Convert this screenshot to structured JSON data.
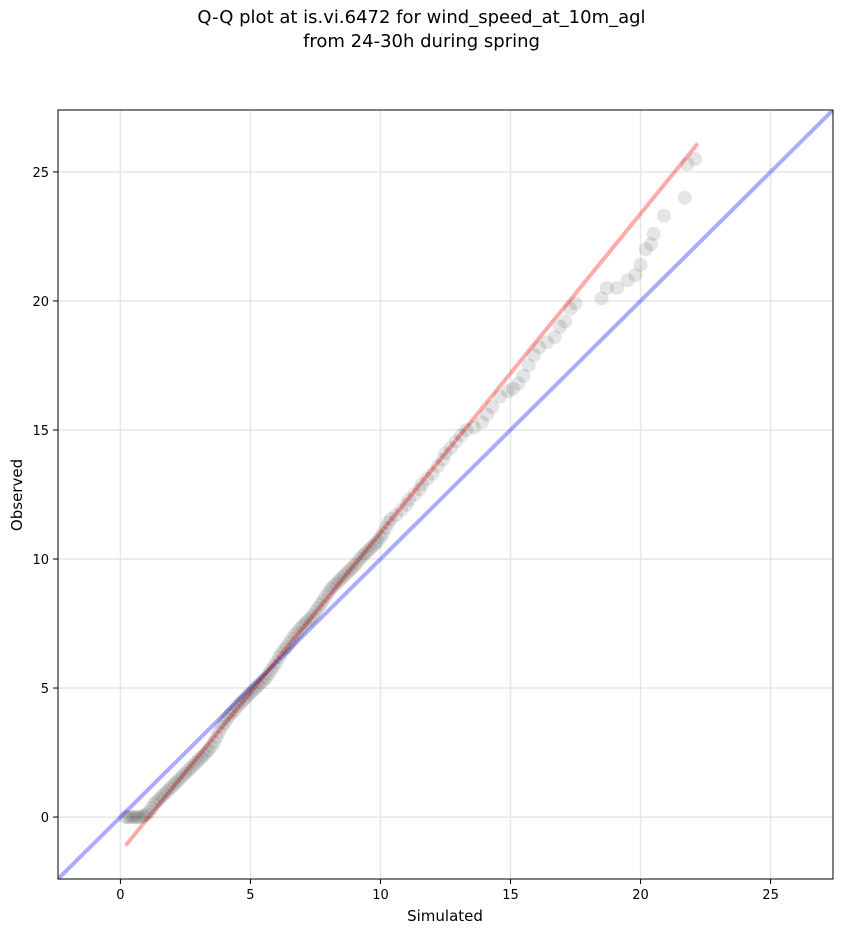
{
  "chart_data": {
    "type": "scatter",
    "title_line1": "Q-Q plot at is.vi.6472 for wind_speed_at_10m_agl",
    "title_line2": "from 24-30h during spring",
    "xlabel": "Simulated",
    "ylabel": "Observed",
    "xlim": [
      -2.4,
      27.4
    ],
    "ylim": [
      -2.4,
      27.4
    ],
    "xticks": [
      0,
      5,
      10,
      15,
      20,
      25
    ],
    "yticks": [
      0,
      5,
      10,
      15,
      20,
      25
    ],
    "grid": true,
    "identity_line": {
      "color": "#0000ff",
      "from": [
        -2.4,
        -2.4
      ],
      "to": [
        27.4,
        27.4
      ]
    },
    "fit_line": {
      "color": "#ff0000",
      "from": [
        0.2,
        -1.1
      ],
      "to": [
        22.2,
        26.1
      ]
    },
    "points": [
      [
        0.2,
        0.0
      ],
      [
        0.3,
        0.0
      ],
      [
        0.4,
        0.0
      ],
      [
        0.5,
        0.0
      ],
      [
        0.6,
        0.0
      ],
      [
        0.7,
        0.0
      ],
      [
        0.8,
        0.0
      ],
      [
        0.9,
        0.05
      ],
      [
        1.0,
        0.1
      ],
      [
        1.1,
        0.2
      ],
      [
        1.2,
        0.35
      ],
      [
        1.3,
        0.5
      ],
      [
        1.4,
        0.6
      ],
      [
        1.5,
        0.7
      ],
      [
        1.6,
        0.8
      ],
      [
        1.7,
        0.9
      ],
      [
        1.8,
        1.0
      ],
      [
        1.9,
        1.1
      ],
      [
        2.0,
        1.2
      ],
      [
        2.1,
        1.3
      ],
      [
        2.2,
        1.4
      ],
      [
        2.3,
        1.5
      ],
      [
        2.4,
        1.6
      ],
      [
        2.5,
        1.7
      ],
      [
        2.6,
        1.8
      ],
      [
        2.7,
        1.9
      ],
      [
        2.8,
        2.0
      ],
      [
        2.9,
        2.1
      ],
      [
        3.0,
        2.2
      ],
      [
        3.1,
        2.3
      ],
      [
        3.2,
        2.4
      ],
      [
        3.3,
        2.5
      ],
      [
        3.4,
        2.6
      ],
      [
        3.5,
        2.75
      ],
      [
        3.6,
        2.9
      ],
      [
        3.7,
        3.1
      ],
      [
        3.8,
        3.3
      ],
      [
        3.9,
        3.5
      ],
      [
        4.0,
        3.65
      ],
      [
        4.1,
        3.8
      ],
      [
        4.2,
        3.95
      ],
      [
        4.3,
        4.05
      ],
      [
        4.4,
        4.15
      ],
      [
        4.5,
        4.3
      ],
      [
        4.6,
        4.4
      ],
      [
        4.7,
        4.5
      ],
      [
        4.8,
        4.6
      ],
      [
        4.9,
        4.7
      ],
      [
        5.0,
        4.8
      ],
      [
        5.1,
        4.9
      ],
      [
        5.2,
        5.0
      ],
      [
        5.3,
        5.1
      ],
      [
        5.4,
        5.2
      ],
      [
        5.5,
        5.3
      ],
      [
        5.6,
        5.4
      ],
      [
        5.7,
        5.55
      ],
      [
        5.8,
        5.7
      ],
      [
        5.9,
        5.85
      ],
      [
        6.0,
        6.0
      ],
      [
        6.1,
        6.2
      ],
      [
        6.2,
        6.35
      ],
      [
        6.3,
        6.5
      ],
      [
        6.4,
        6.6
      ],
      [
        6.5,
        6.75
      ],
      [
        6.6,
        6.9
      ],
      [
        6.7,
        7.05
      ],
      [
        6.8,
        7.15
      ],
      [
        6.9,
        7.3
      ],
      [
        7.0,
        7.4
      ],
      [
        7.1,
        7.5
      ],
      [
        7.2,
        7.6
      ],
      [
        7.3,
        7.7
      ],
      [
        7.4,
        7.8
      ],
      [
        7.5,
        7.95
      ],
      [
        7.6,
        8.1
      ],
      [
        7.7,
        8.25
      ],
      [
        7.8,
        8.4
      ],
      [
        7.9,
        8.55
      ],
      [
        8.0,
        8.7
      ],
      [
        8.1,
        8.85
      ],
      [
        8.2,
        8.95
      ],
      [
        8.3,
        9.05
      ],
      [
        8.4,
        9.15
      ],
      [
        8.5,
        9.25
      ],
      [
        8.6,
        9.35
      ],
      [
        8.7,
        9.45
      ],
      [
        8.8,
        9.55
      ],
      [
        8.9,
        9.65
      ],
      [
        9.0,
        9.75
      ],
      [
        9.1,
        9.85
      ],
      [
        9.2,
        10.0
      ],
      [
        9.3,
        10.1
      ],
      [
        9.4,
        10.2
      ],
      [
        9.5,
        10.3
      ],
      [
        9.6,
        10.4
      ],
      [
        9.7,
        10.5
      ],
      [
        9.8,
        10.6
      ],
      [
        9.9,
        10.7
      ],
      [
        10.0,
        10.85
      ],
      [
        10.1,
        11.0
      ],
      [
        10.2,
        11.2
      ],
      [
        10.3,
        11.4
      ],
      [
        10.4,
        11.55
      ],
      [
        10.6,
        11.7
      ],
      [
        10.8,
        11.9
      ],
      [
        11.0,
        12.1
      ],
      [
        11.1,
        12.3
      ],
      [
        11.3,
        12.5
      ],
      [
        11.5,
        12.7
      ],
      [
        11.6,
        12.9
      ],
      [
        11.8,
        13.1
      ],
      [
        12.0,
        13.3
      ],
      [
        12.2,
        13.6
      ],
      [
        12.4,
        13.85
      ],
      [
        12.5,
        14.1
      ],
      [
        12.7,
        14.3
      ],
      [
        12.9,
        14.55
      ],
      [
        13.1,
        14.8
      ],
      [
        13.3,
        15.0
      ],
      [
        13.6,
        15.1
      ],
      [
        13.9,
        15.3
      ],
      [
        14.1,
        15.6
      ],
      [
        14.3,
        15.9
      ],
      [
        14.6,
        16.3
      ],
      [
        14.9,
        16.5
      ],
      [
        15.1,
        16.6
      ],
      [
        15.3,
        16.8
      ],
      [
        15.5,
        17.1
      ],
      [
        15.7,
        17.5
      ],
      [
        15.9,
        17.9
      ],
      [
        16.1,
        18.2
      ],
      [
        16.4,
        18.4
      ],
      [
        16.7,
        18.6
      ],
      [
        16.9,
        19.0
      ],
      [
        17.1,
        19.2
      ],
      [
        17.3,
        19.7
      ],
      [
        17.5,
        19.9
      ],
      [
        18.5,
        20.1
      ],
      [
        18.7,
        20.5
      ],
      [
        19.1,
        20.5
      ],
      [
        19.5,
        20.8
      ],
      [
        19.8,
        21.0
      ],
      [
        20.0,
        21.4
      ],
      [
        20.2,
        22.0
      ],
      [
        20.4,
        22.2
      ],
      [
        20.5,
        22.6
      ],
      [
        20.9,
        23.3
      ],
      [
        21.7,
        24.0
      ],
      [
        21.8,
        25.3
      ],
      [
        22.1,
        25.5
      ]
    ]
  }
}
